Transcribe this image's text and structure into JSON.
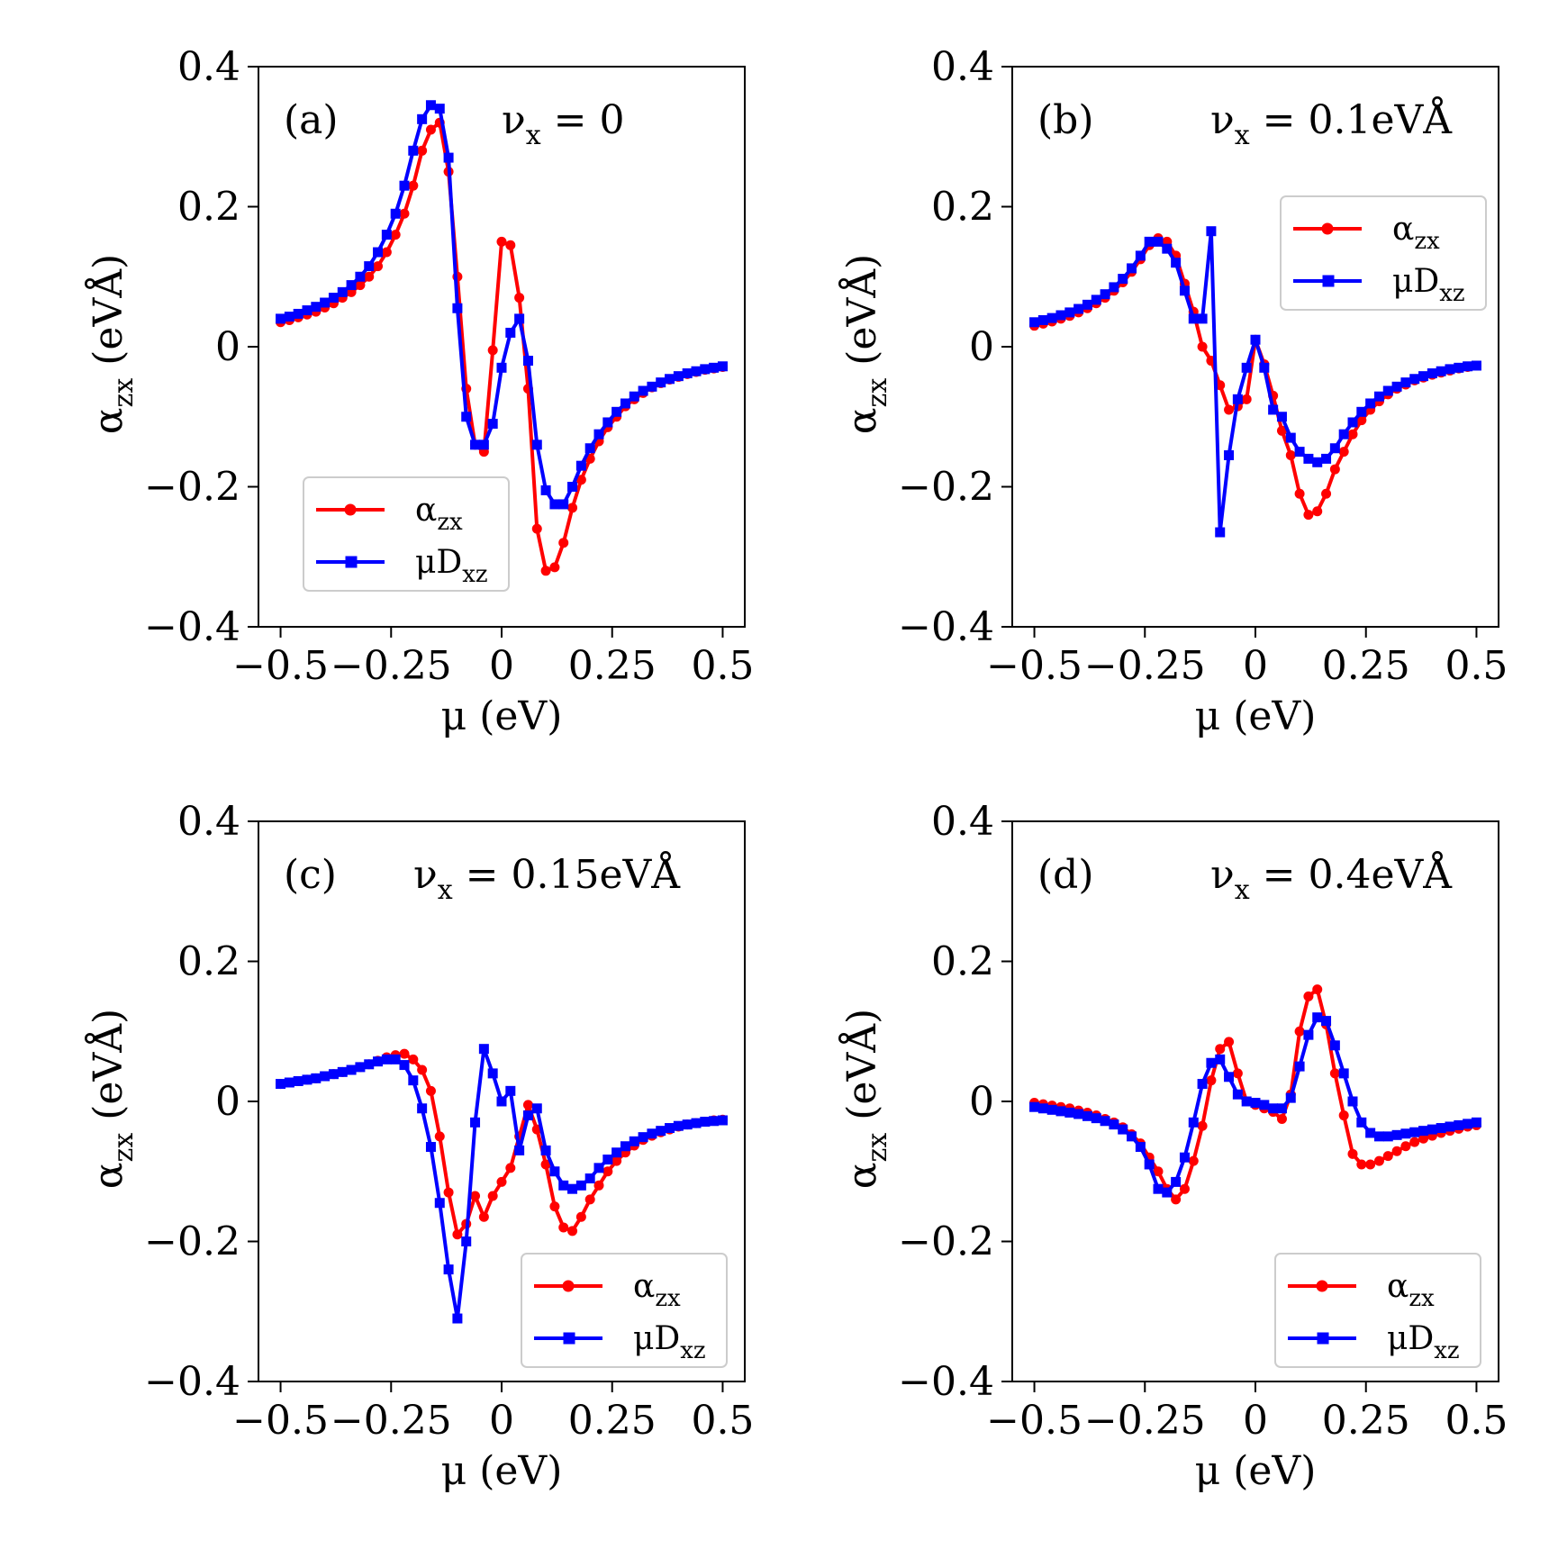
{
  "colors": {
    "alpha": "#ff0000",
    "muD": "#0000ff",
    "axis": "#000000",
    "legend_border": "#cccccc"
  },
  "chart_data": [
    {
      "type": "line",
      "panel_label": "(a)",
      "param_text": "νx = 0",
      "param_symbol": "ν",
      "param_sub": "x",
      "param_value": " = 0",
      "xlabel": "μ (eV)",
      "ylabel": "αzx (eVÅ)",
      "ylabel_main": "α",
      "ylabel_sub": "zx",
      "ylabel_rest": " (eVÅ)",
      "xlim": [
        -0.55,
        0.55
      ],
      "ylim": [
        -0.4,
        0.4
      ],
      "xticks": [
        -0.5,
        -0.25,
        0,
        0.25,
        0.5
      ],
      "xtick_labels": [
        "−0.5",
        "−0.25",
        "0",
        "0.25",
        "0.5"
      ],
      "yticks": [
        0.4,
        0.2,
        0,
        -0.2,
        -0.4
      ],
      "ytick_labels": [
        "0.4",
        "0.2",
        "0",
        "−0.2",
        "−0.4"
      ],
      "legend_position": "lower-left",
      "x": [
        -0.5,
        -0.48,
        -0.46,
        -0.44,
        -0.42,
        -0.4,
        -0.38,
        -0.36,
        -0.34,
        -0.32,
        -0.3,
        -0.28,
        -0.26,
        -0.24,
        -0.22,
        -0.2,
        -0.18,
        -0.16,
        -0.14,
        -0.12,
        -0.1,
        -0.08,
        -0.06,
        -0.04,
        -0.02,
        0,
        0.02,
        0.04,
        0.06,
        0.08,
        0.1,
        0.12,
        0.14,
        0.16,
        0.18,
        0.2,
        0.22,
        0.24,
        0.26,
        0.28,
        0.3,
        0.32,
        0.34,
        0.36,
        0.38,
        0.4,
        0.42,
        0.44,
        0.46,
        0.48,
        0.5
      ],
      "series": [
        {
          "name": "αzx",
          "label_main": "α",
          "label_sub": "zx",
          "color": "#ff0000",
          "marker": "circle",
          "values": [
            0.035,
            0.038,
            0.042,
            0.046,
            0.05,
            0.056,
            0.062,
            0.07,
            0.078,
            0.088,
            0.1,
            0.115,
            0.135,
            0.16,
            0.19,
            0.23,
            0.28,
            0.31,
            0.32,
            0.25,
            0.1,
            -0.06,
            -0.14,
            -0.15,
            -0.005,
            0.15,
            0.145,
            0.07,
            -0.06,
            -0.26,
            -0.32,
            -0.315,
            -0.28,
            -0.23,
            -0.19,
            -0.16,
            -0.135,
            -0.115,
            -0.1,
            -0.085,
            -0.075,
            -0.066,
            -0.058,
            -0.052,
            -0.047,
            -0.043,
            -0.039,
            -0.036,
            -0.033,
            -0.031,
            -0.029
          ]
        },
        {
          "name": "μDxz",
          "label_main": "μD",
          "label_sub": "xz",
          "color": "#0000ff",
          "marker": "square",
          "values": [
            0.04,
            0.043,
            0.047,
            0.052,
            0.057,
            0.063,
            0.07,
            0.078,
            0.088,
            0.1,
            0.115,
            0.135,
            0.16,
            0.19,
            0.23,
            0.28,
            0.325,
            0.345,
            0.34,
            0.27,
            0.055,
            -0.1,
            -0.14,
            -0.14,
            -0.11,
            -0.03,
            0.02,
            0.04,
            -0.02,
            -0.14,
            -0.205,
            -0.225,
            -0.225,
            -0.2,
            -0.17,
            -0.145,
            -0.125,
            -0.108,
            -0.093,
            -0.081,
            -0.071,
            -0.063,
            -0.057,
            -0.051,
            -0.046,
            -0.042,
            -0.038,
            -0.035,
            -0.032,
            -0.03,
            -0.028
          ]
        }
      ]
    },
    {
      "type": "line",
      "panel_label": "(b)",
      "param_text": "νx = 0.1eVÅ",
      "param_symbol": "ν",
      "param_sub": "x",
      "param_value": " = 0.1eVÅ",
      "xlabel": "μ (eV)",
      "ylabel": "αzx (eVÅ)",
      "ylabel_main": "α",
      "ylabel_sub": "zx",
      "ylabel_rest": " (eVÅ)",
      "xlim": [
        -0.55,
        0.55
      ],
      "ylim": [
        -0.4,
        0.4
      ],
      "xticks": [
        -0.5,
        -0.25,
        0,
        0.25,
        0.5
      ],
      "xtick_labels": [
        "−0.5",
        "−0.25",
        "0",
        "0.25",
        "0.5"
      ],
      "yticks": [
        0.4,
        0.2,
        0,
        -0.2,
        -0.4
      ],
      "ytick_labels": [
        "0.4",
        "0.2",
        "0",
        "−0.2",
        "−0.4"
      ],
      "legend_position": "upper-right",
      "x": [
        -0.5,
        -0.48,
        -0.46,
        -0.44,
        -0.42,
        -0.4,
        -0.38,
        -0.36,
        -0.34,
        -0.32,
        -0.3,
        -0.28,
        -0.26,
        -0.24,
        -0.22,
        -0.2,
        -0.18,
        -0.16,
        -0.14,
        -0.12,
        -0.1,
        -0.08,
        -0.06,
        -0.04,
        -0.02,
        0,
        0.02,
        0.04,
        0.06,
        0.08,
        0.1,
        0.12,
        0.14,
        0.16,
        0.18,
        0.2,
        0.22,
        0.24,
        0.26,
        0.28,
        0.3,
        0.32,
        0.34,
        0.36,
        0.38,
        0.4,
        0.42,
        0.44,
        0.46,
        0.48,
        0.5
      ],
      "series": [
        {
          "name": "αzx",
          "label_main": "α",
          "label_sub": "zx",
          "color": "#ff0000",
          "marker": "circle",
          "values": [
            0.03,
            0.033,
            0.036,
            0.04,
            0.044,
            0.049,
            0.055,
            0.062,
            0.07,
            0.08,
            0.092,
            0.107,
            0.125,
            0.145,
            0.155,
            0.15,
            0.13,
            0.09,
            0.05,
            0.0,
            -0.02,
            -0.055,
            -0.09,
            -0.085,
            -0.075,
            0.01,
            -0.025,
            -0.07,
            -0.12,
            -0.155,
            -0.21,
            -0.24,
            -0.235,
            -0.21,
            -0.175,
            -0.15,
            -0.125,
            -0.105,
            -0.09,
            -0.078,
            -0.068,
            -0.06,
            -0.054,
            -0.048,
            -0.044,
            -0.04,
            -0.037,
            -0.034,
            -0.031,
            -0.029,
            -0.027
          ]
        },
        {
          "name": "μDxz",
          "label_main": "μD",
          "label_sub": "xz",
          "color": "#0000ff",
          "marker": "square",
          "values": [
            0.035,
            0.038,
            0.041,
            0.045,
            0.049,
            0.054,
            0.06,
            0.067,
            0.075,
            0.085,
            0.097,
            0.112,
            0.13,
            0.15,
            0.15,
            0.14,
            0.12,
            0.08,
            0.04,
            0.04,
            0.165,
            -0.265,
            -0.155,
            -0.075,
            -0.03,
            0.01,
            -0.03,
            -0.09,
            -0.1,
            -0.13,
            -0.15,
            -0.16,
            -0.165,
            -0.16,
            -0.145,
            -0.125,
            -0.108,
            -0.093,
            -0.081,
            -0.071,
            -0.063,
            -0.057,
            -0.051,
            -0.046,
            -0.042,
            -0.038,
            -0.035,
            -0.032,
            -0.03,
            -0.028,
            -0.027
          ]
        }
      ]
    },
    {
      "type": "line",
      "panel_label": "(c)",
      "param_text": "νx = 0.15eVÅ",
      "param_symbol": "ν",
      "param_sub": "x",
      "param_value": " = 0.15eVÅ",
      "xlabel": "μ (eV)",
      "ylabel": "αzx (eVÅ)",
      "ylabel_main": "α",
      "ylabel_sub": "zx",
      "ylabel_rest": " (eVÅ)",
      "xlim": [
        -0.55,
        0.55
      ],
      "ylim": [
        -0.4,
        0.4
      ],
      "xticks": [
        -0.5,
        -0.25,
        0,
        0.25,
        0.5
      ],
      "xtick_labels": [
        "−0.5",
        "−0.25",
        "0",
        "0.25",
        "0.5"
      ],
      "yticks": [
        0.4,
        0.2,
        0,
        -0.2,
        -0.4
      ],
      "ytick_labels": [
        "0.4",
        "0.2",
        "0",
        "−0.2",
        "−0.4"
      ],
      "legend_position": "lower-right",
      "x": [
        -0.5,
        -0.48,
        -0.46,
        -0.44,
        -0.42,
        -0.4,
        -0.38,
        -0.36,
        -0.34,
        -0.32,
        -0.3,
        -0.28,
        -0.26,
        -0.24,
        -0.22,
        -0.2,
        -0.18,
        -0.16,
        -0.14,
        -0.12,
        -0.1,
        -0.08,
        -0.06,
        -0.04,
        -0.02,
        0,
        0.02,
        0.04,
        0.06,
        0.08,
        0.1,
        0.12,
        0.14,
        0.16,
        0.18,
        0.2,
        0.22,
        0.24,
        0.26,
        0.28,
        0.3,
        0.32,
        0.34,
        0.36,
        0.38,
        0.4,
        0.42,
        0.44,
        0.46,
        0.48,
        0.5
      ],
      "series": [
        {
          "name": "αzx",
          "label_main": "α",
          "label_sub": "zx",
          "color": "#ff0000",
          "marker": "circle",
          "values": [
            0.025,
            0.027,
            0.029,
            0.031,
            0.033,
            0.036,
            0.039,
            0.042,
            0.045,
            0.049,
            0.053,
            0.058,
            0.063,
            0.066,
            0.068,
            0.06,
            0.045,
            0.015,
            -0.05,
            -0.13,
            -0.19,
            -0.175,
            -0.135,
            -0.165,
            -0.135,
            -0.115,
            -0.095,
            -0.05,
            -0.005,
            -0.04,
            -0.09,
            -0.15,
            -0.18,
            -0.185,
            -0.165,
            -0.14,
            -0.12,
            -0.1,
            -0.085,
            -0.073,
            -0.063,
            -0.055,
            -0.049,
            -0.044,
            -0.04,
            -0.036,
            -0.033,
            -0.031,
            -0.029,
            -0.027,
            -0.026
          ]
        },
        {
          "name": "μDxz",
          "label_main": "μD",
          "label_sub": "xz",
          "color": "#0000ff",
          "marker": "square",
          "values": [
            0.025,
            0.027,
            0.029,
            0.031,
            0.033,
            0.036,
            0.039,
            0.042,
            0.045,
            0.049,
            0.053,
            0.057,
            0.06,
            0.06,
            0.052,
            0.03,
            -0.01,
            -0.065,
            -0.145,
            -0.24,
            -0.31,
            -0.2,
            -0.03,
            0.075,
            0.04,
            0.0,
            0.015,
            -0.07,
            -0.02,
            -0.01,
            -0.07,
            -0.1,
            -0.12,
            -0.125,
            -0.12,
            -0.11,
            -0.095,
            -0.083,
            -0.073,
            -0.064,
            -0.057,
            -0.051,
            -0.046,
            -0.042,
            -0.038,
            -0.035,
            -0.033,
            -0.031,
            -0.029,
            -0.028,
            -0.027
          ]
        }
      ]
    },
    {
      "type": "line",
      "panel_label": "(d)",
      "param_text": "νx = 0.4eVÅ",
      "param_symbol": "ν",
      "param_sub": "x",
      "param_value": " = 0.4eVÅ",
      "xlabel": "μ (eV)",
      "ylabel": "αzx (eVÅ)",
      "ylabel_main": "α",
      "ylabel_sub": "zx",
      "ylabel_rest": " (eVÅ)",
      "xlim": [
        -0.55,
        0.55
      ],
      "ylim": [
        -0.4,
        0.4
      ],
      "xticks": [
        -0.5,
        -0.25,
        0,
        0.25,
        0.5
      ],
      "xtick_labels": [
        "−0.5",
        "−0.25",
        "0",
        "0.25",
        "0.5"
      ],
      "yticks": [
        0.4,
        0.2,
        0,
        -0.2,
        -0.4
      ],
      "ytick_labels": [
        "0.4",
        "0.2",
        "0",
        "−0.2",
        "−0.4"
      ],
      "legend_position": "lower-right",
      "x": [
        -0.5,
        -0.48,
        -0.46,
        -0.44,
        -0.42,
        -0.4,
        -0.38,
        -0.36,
        -0.34,
        -0.32,
        -0.3,
        -0.28,
        -0.26,
        -0.24,
        -0.22,
        -0.2,
        -0.18,
        -0.16,
        -0.14,
        -0.12,
        -0.1,
        -0.08,
        -0.06,
        -0.04,
        -0.02,
        0,
        0.02,
        0.04,
        0.06,
        0.08,
        0.1,
        0.12,
        0.14,
        0.16,
        0.18,
        0.2,
        0.22,
        0.24,
        0.26,
        0.28,
        0.3,
        0.32,
        0.34,
        0.36,
        0.38,
        0.4,
        0.42,
        0.44,
        0.46,
        0.48,
        0.5
      ],
      "series": [
        {
          "name": "αzx",
          "label_main": "α",
          "label_sub": "zx",
          "color": "#ff0000",
          "marker": "circle",
          "values": [
            -0.002,
            -0.004,
            -0.006,
            -0.008,
            -0.01,
            -0.013,
            -0.016,
            -0.02,
            -0.025,
            -0.03,
            -0.037,
            -0.047,
            -0.06,
            -0.08,
            -0.1,
            -0.125,
            -0.14,
            -0.125,
            -0.085,
            -0.035,
            0.03,
            0.075,
            0.085,
            0.04,
            0.0,
            -0.005,
            -0.01,
            -0.015,
            -0.025,
            0.01,
            0.1,
            0.15,
            0.16,
            0.11,
            0.04,
            -0.02,
            -0.075,
            -0.09,
            -0.09,
            -0.085,
            -0.078,
            -0.071,
            -0.064,
            -0.058,
            -0.053,
            -0.049,
            -0.045,
            -0.042,
            -0.039,
            -0.036,
            -0.034
          ]
        },
        {
          "name": "μDxz",
          "label_main": "μD",
          "label_sub": "xz",
          "color": "#0000ff",
          "marker": "square",
          "values": [
            -0.008,
            -0.01,
            -0.012,
            -0.014,
            -0.016,
            -0.018,
            -0.021,
            -0.024,
            -0.028,
            -0.033,
            -0.04,
            -0.05,
            -0.065,
            -0.09,
            -0.125,
            -0.13,
            -0.115,
            -0.08,
            -0.03,
            0.025,
            0.055,
            0.06,
            0.035,
            0.01,
            0.0,
            -0.002,
            -0.005,
            -0.01,
            -0.01,
            0.005,
            0.05,
            0.095,
            0.12,
            0.115,
            0.08,
            0.04,
            0.0,
            -0.03,
            -0.045,
            -0.05,
            -0.05,
            -0.048,
            -0.046,
            -0.044,
            -0.042,
            -0.04,
            -0.038,
            -0.036,
            -0.034,
            -0.032,
            -0.03
          ]
        }
      ]
    }
  ]
}
